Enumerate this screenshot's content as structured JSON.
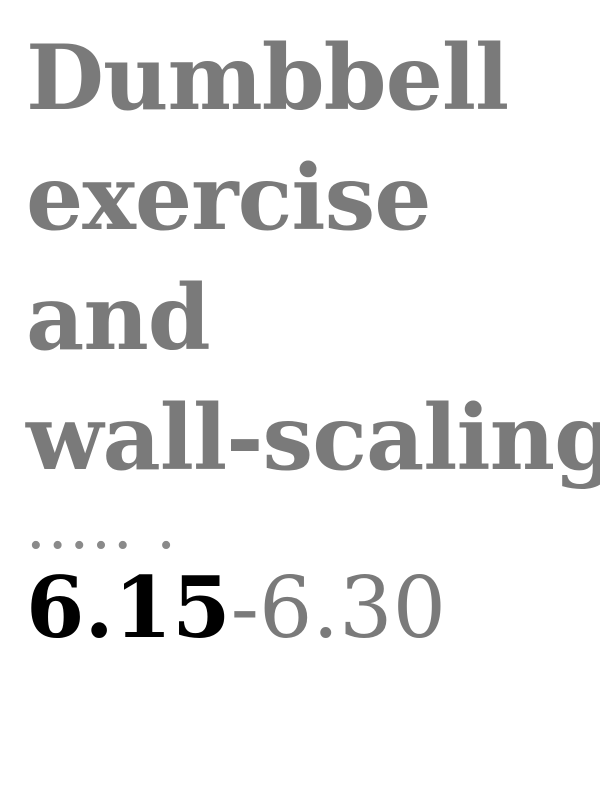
{
  "title_lines": [
    "Dumbbell",
    "exercise",
    "and",
    "wall-scaling"
  ],
  "dots": "..... .",
  "time": {
    "start": "6.15",
    "separator": "-",
    "end": "6.30"
  },
  "colors": {
    "title": "#7a7a7a",
    "start_time": "#000000",
    "end_time": "#7a7a7a"
  }
}
